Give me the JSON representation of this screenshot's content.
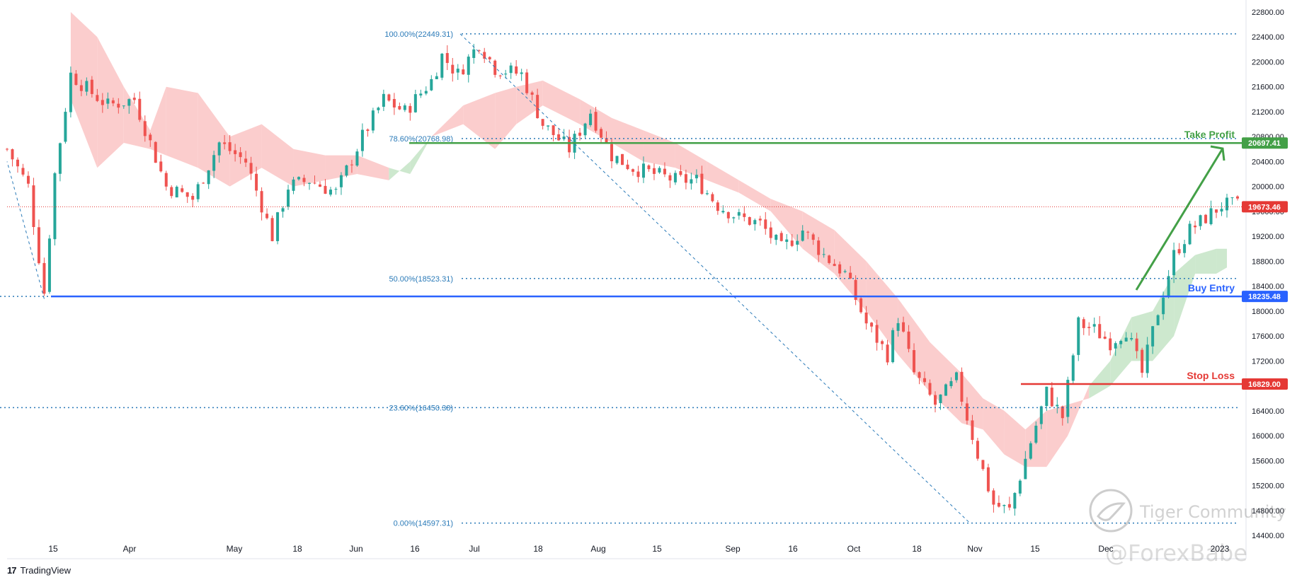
{
  "branding": {
    "logo_text": "17",
    "platform": "TradingView",
    "watermark_name": "Tiger Community",
    "watermark_handle": "@ForexBabe"
  },
  "colors": {
    "up": "#26a69a",
    "down": "#ef5350",
    "cloud_bull": "#c8e6c9",
    "cloud_bear": "#fbc8c8",
    "buy_entry": "#2962ff",
    "take_profit": "#43a047",
    "stop_loss": "#e53935",
    "fib": "#2a7ab8",
    "current_price": "#e53935"
  },
  "chart_data": {
    "type": "candlestick",
    "ylim": [
      14400,
      22800
    ],
    "y_ticks": [
      14400,
      14800,
      15200,
      15600,
      16000,
      16400,
      16800,
      17200,
      17600,
      18000,
      18400,
      18800,
      19200,
      19600,
      20000,
      20400,
      20800,
      21200,
      21600,
      22000,
      22400,
      22800
    ],
    "y_tick_labels": [
      "14400.00",
      "14800.00",
      "15200.00",
      "15600.00",
      "16000.00",
      "16400.00",
      "16800.00",
      "17200.00",
      "17600.00",
      "18000.00",
      "18400.00",
      "18800.00",
      "19200.00",
      "19600.00",
      "20000.00",
      "20400.00",
      "20800.00",
      "21200.00",
      "21600.00",
      "22000.00",
      "22400.00",
      "22800.00"
    ],
    "x_labels": [
      "15",
      "Apr",
      "May",
      "18",
      "Jun",
      "16",
      "Jul",
      "18",
      "Aug",
      "15",
      "Sep",
      "16",
      "Oct",
      "18",
      "Nov",
      "15",
      "Dec",
      "2023"
    ],
    "fib_levels": [
      {
        "label": "100.00%(22449.31)",
        "value": 22449.31
      },
      {
        "label": "78.60%(20768.98)",
        "value": 20768.98
      },
      {
        "label": "50.00%(18523.31)",
        "value": 18523.31
      },
      {
        "label": "23.60%(16450.38)",
        "value": 16450.38
      },
      {
        "label": "0.00%(14597.31)",
        "value": 14597.31
      }
    ],
    "trade_levels": {
      "take_profit": {
        "label": "Take Profit",
        "value": 20697.41,
        "tag": "20697.41"
      },
      "buy_entry": {
        "label": "Buy Entry",
        "value": 18235.48,
        "tag": "18235.48"
      },
      "stop_loss": {
        "label": "Stop Loss",
        "value": 16829.0,
        "tag": "16829.00"
      }
    },
    "current_price": {
      "value": 19673.46,
      "tag": "19673.46"
    },
    "candle_path": [
      [
        0,
        20600
      ],
      [
        4,
        20000
      ],
      [
        7,
        18300
      ],
      [
        9,
        20200
      ],
      [
        12,
        21800
      ],
      [
        16,
        21500
      ],
      [
        19,
        21300
      ],
      [
        24,
        21400
      ],
      [
        30,
        20000
      ],
      [
        35,
        19800
      ],
      [
        40,
        20700
      ],
      [
        45,
        20400
      ],
      [
        48,
        19700
      ],
      [
        50,
        19200
      ],
      [
        53,
        20000
      ],
      [
        57,
        20100
      ],
      [
        62,
        19900
      ],
      [
        67,
        20800
      ],
      [
        71,
        21400
      ],
      [
        75,
        21200
      ],
      [
        80,
        21700
      ],
      [
        82,
        22100
      ],
      [
        85,
        21800
      ],
      [
        89,
        22300
      ],
      [
        92,
        21900
      ],
      [
        97,
        21800
      ],
      [
        101,
        21000
      ],
      [
        106,
        20600
      ],
      [
        110,
        21200
      ],
      [
        114,
        20500
      ],
      [
        118,
        20300
      ],
      [
        122,
        20200
      ],
      [
        126,
        20100
      ],
      [
        130,
        20100
      ],
      [
        134,
        19700
      ],
      [
        138,
        19500
      ],
      [
        142,
        19400
      ],
      [
        146,
        19000
      ],
      [
        150,
        19300
      ],
      [
        154,
        18900
      ],
      [
        158,
        18600
      ],
      [
        162,
        17800
      ],
      [
        166,
        17300
      ],
      [
        168,
        17900
      ],
      [
        171,
        17000
      ],
      [
        175,
        16500
      ],
      [
        179,
        16900
      ],
      [
        183,
        15700
      ],
      [
        186,
        14900
      ],
      [
        189,
        14800
      ],
      [
        193,
        15900
      ],
      [
        196,
        16700
      ],
      [
        199,
        16300
      ],
      [
        202,
        17800
      ],
      [
        205,
        17700
      ],
      [
        208,
        17500
      ],
      [
        211,
        17700
      ],
      [
        214,
        17000
      ],
      [
        217,
        18000
      ],
      [
        220,
        18900
      ],
      [
        223,
        19300
      ],
      [
        226,
        19500
      ],
      [
        229,
        19700
      ],
      [
        232,
        19700
      ]
    ],
    "cloud_path": [
      [
        12,
        22800,
        21400
      ],
      [
        17,
        22400,
        20300
      ],
      [
        22,
        21600,
        20700
      ],
      [
        27,
        20900,
        20600
      ],
      [
        30,
        21600,
        20500
      ],
      [
        36,
        21500,
        20300
      ],
      [
        42,
        20800,
        20000
      ],
      [
        48,
        21000,
        20300
      ],
      [
        54,
        20600,
        20000
      ],
      [
        60,
        20500,
        20100
      ],
      [
        66,
        20500,
        20200
      ],
      [
        72,
        20300,
        20100
      ],
      [
        76,
        20200,
        20400
      ],
      [
        80,
        20800,
        20800
      ],
      [
        86,
        21300,
        21000
      ],
      [
        92,
        21500,
        20600
      ],
      [
        96,
        21600,
        21000
      ],
      [
        101,
        21700,
        21300
      ],
      [
        108,
        21400,
        21000
      ],
      [
        114,
        21100,
        20700
      ],
      [
        120,
        20900,
        20400
      ],
      [
        126,
        20700,
        20300
      ],
      [
        132,
        20400,
        20100
      ],
      [
        138,
        20100,
        19900
      ],
      [
        144,
        19800,
        19600
      ],
      [
        150,
        19600,
        19000
      ],
      [
        156,
        19300,
        18600
      ],
      [
        162,
        18800,
        18000
      ],
      [
        168,
        18200,
        17300
      ],
      [
        174,
        17500,
        16700
      ],
      [
        180,
        17000,
        16200
      ],
      [
        184,
        16600,
        16100
      ],
      [
        188,
        16400,
        15700
      ],
      [
        192,
        16100,
        15500
      ],
      [
        196,
        16400,
        15500
      ],
      [
        200,
        16500,
        16000
      ],
      [
        204,
        16600,
        16800
      ],
      [
        208,
        16800,
        17200
      ],
      [
        212,
        17200,
        17900
      ],
      [
        216,
        17200,
        18000
      ],
      [
        220,
        17600,
        18600
      ],
      [
        224,
        18600,
        18900
      ],
      [
        228,
        18600,
        19000
      ],
      [
        230,
        18700,
        19000
      ]
    ]
  }
}
